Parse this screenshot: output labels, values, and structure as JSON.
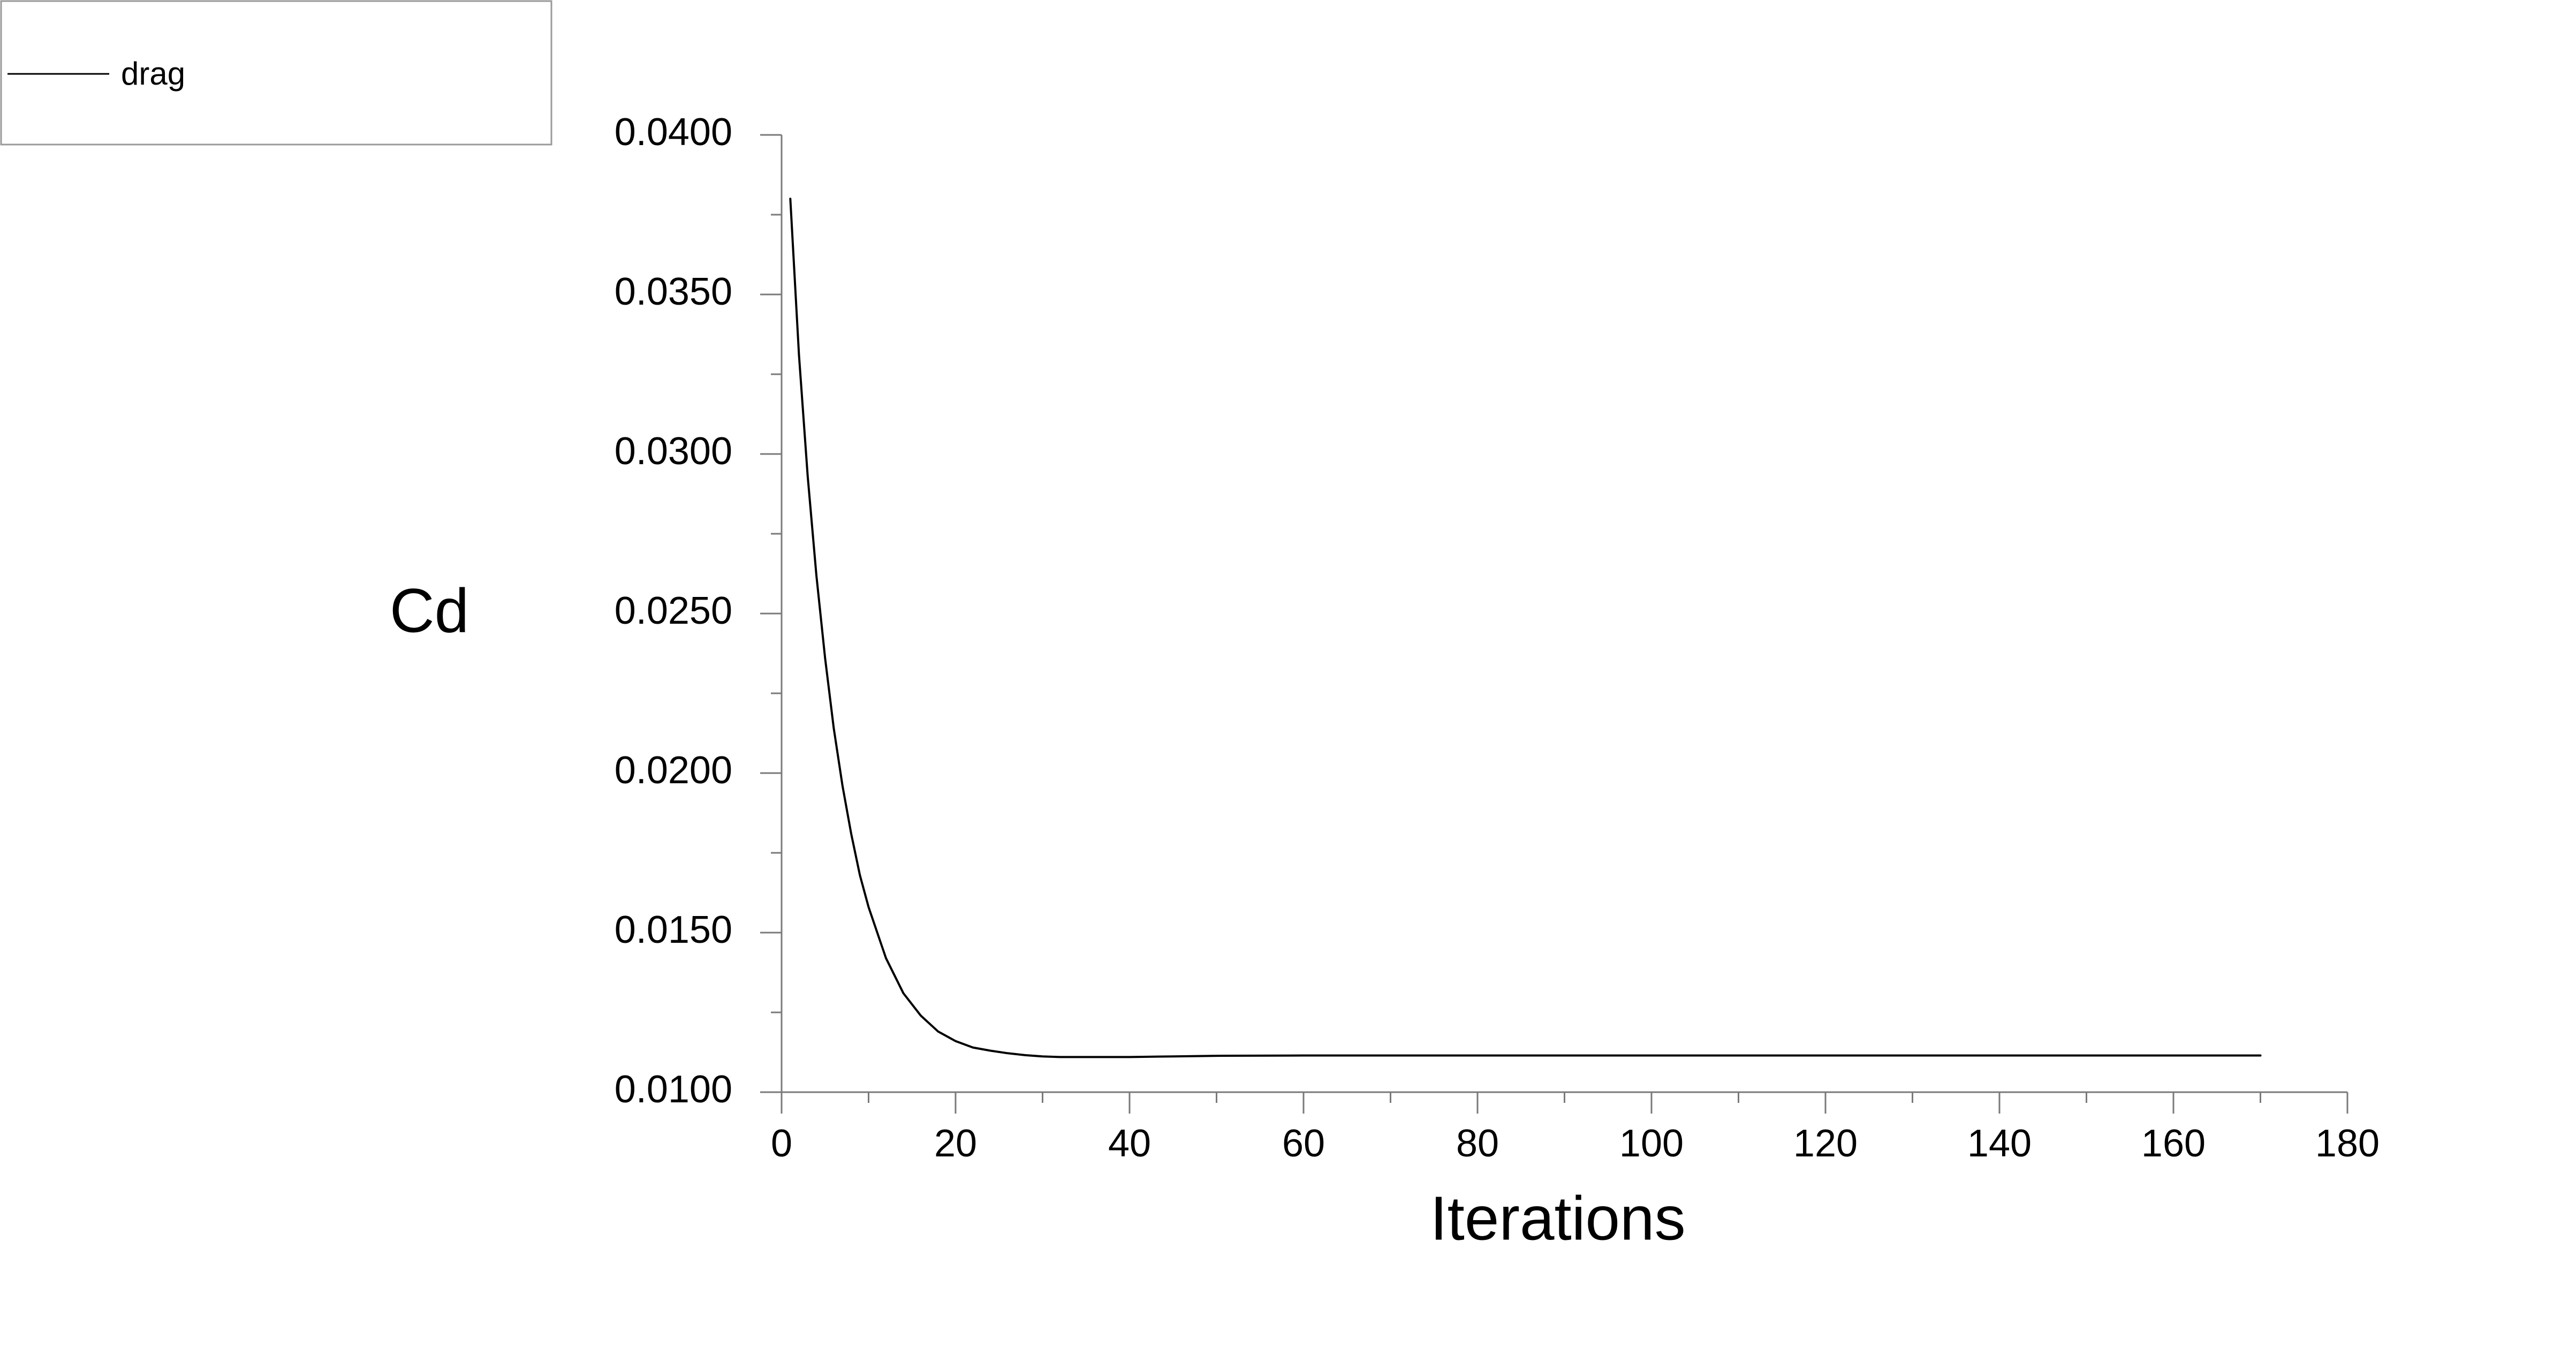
{
  "chart_data": {
    "type": "line",
    "title": "",
    "xlabel": "Iterations",
    "ylabel": "Cd",
    "xlim": [
      0,
      180
    ],
    "ylim": [
      0.01,
      0.04
    ],
    "x_ticks": [
      "0",
      "20",
      "40",
      "60",
      "80",
      "100",
      "120",
      "140",
      "160",
      "180"
    ],
    "y_ticks": [
      "0.0100",
      "0.0150",
      "0.0200",
      "0.0250",
      "0.0300",
      "0.0350",
      "0.0400"
    ],
    "grid": false,
    "legend_position": "top-left",
    "line_color": "#000000",
    "series": [
      {
        "name": "drag",
        "x": [
          1,
          2,
          3,
          4,
          5,
          6,
          7,
          8,
          9,
          10,
          12,
          14,
          16,
          18,
          20,
          22,
          24,
          26,
          28,
          30,
          32,
          35,
          40,
          45,
          50,
          60,
          70,
          80,
          90,
          100,
          110,
          120,
          130,
          140,
          150,
          160,
          170
        ],
        "y": [
          0.038,
          0.0331,
          0.0293,
          0.0262,
          0.0236,
          0.0214,
          0.0196,
          0.0181,
          0.0168,
          0.0158,
          0.0142,
          0.0131,
          0.0124,
          0.0119,
          0.0116,
          0.0114,
          0.0113,
          0.01122,
          0.01116,
          0.01112,
          0.0111,
          0.0111,
          0.0111,
          0.01112,
          0.01114,
          0.01115,
          0.01115,
          0.01115,
          0.01115,
          0.01115,
          0.01115,
          0.01115,
          0.01115,
          0.01115,
          0.01115,
          0.01115,
          0.01115
        ]
      }
    ]
  }
}
